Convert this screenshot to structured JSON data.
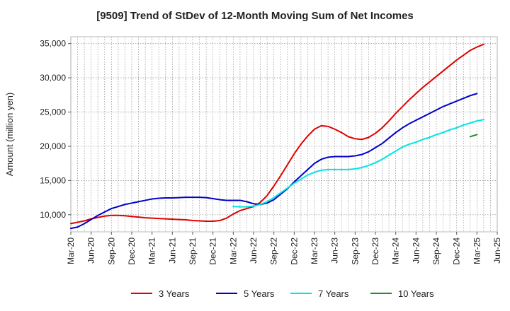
{
  "title": "[9509]  Trend of StDev of 12-Month Moving Sum of Net Incomes",
  "chart_data": {
    "type": "line",
    "title": "[9509]  Trend of StDev of 12-Month Moving Sum of Net Incomes",
    "xlabel": "",
    "ylabel": "Amount (million yen)",
    "ylim": [
      7500,
      36000
    ],
    "y_ticks": [
      10000,
      15000,
      20000,
      25000,
      30000,
      35000
    ],
    "y_tick_labels": [
      "10,000",
      "15,000",
      "20,000",
      "25,000",
      "30,000",
      "35,000"
    ],
    "x_tick_labels": [
      "Mar-20",
      "Jun-20",
      "Sep-20",
      "Dec-20",
      "Mar-21",
      "Jun-21",
      "Sep-21",
      "Dec-21",
      "Mar-22",
      "Jun-22",
      "Sep-22",
      "Dec-22",
      "Mar-23",
      "Jun-23",
      "Sep-23",
      "Dec-23",
      "Mar-24",
      "Jun-24",
      "Sep-24",
      "Dec-24",
      "Mar-25",
      "Jun-25"
    ],
    "grid": true,
    "legend_position": "bottom",
    "series": [
      {
        "name": "3 Years",
        "color": "#e00000",
        "points": [
          [
            "Mar-20",
            8700
          ],
          [
            "Apr-20",
            8900
          ],
          [
            "May-20",
            9100
          ],
          [
            "Jun-20",
            9400
          ],
          [
            "Jul-20",
            9600
          ],
          [
            "Aug-20",
            9800
          ],
          [
            "Sep-20",
            9900
          ],
          [
            "Oct-20",
            9900
          ],
          [
            "Nov-20",
            9850
          ],
          [
            "Dec-20",
            9750
          ],
          [
            "Jan-21",
            9650
          ],
          [
            "Feb-21",
            9550
          ],
          [
            "Mar-21",
            9500
          ],
          [
            "Apr-21",
            9450
          ],
          [
            "May-21",
            9400
          ],
          [
            "Jun-21",
            9350
          ],
          [
            "Jul-21",
            9300
          ],
          [
            "Aug-21",
            9250
          ],
          [
            "Sep-21",
            9150
          ],
          [
            "Oct-21",
            9100
          ],
          [
            "Nov-21",
            9050
          ],
          [
            "Dec-21",
            9050
          ],
          [
            "Jan-22",
            9150
          ],
          [
            "Feb-22",
            9500
          ],
          [
            "Mar-22",
            10100
          ],
          [
            "Apr-22",
            10600
          ],
          [
            "May-22",
            10900
          ],
          [
            "Jun-22",
            11200
          ],
          [
            "Jul-22",
            11800
          ],
          [
            "Aug-22",
            12800
          ],
          [
            "Sep-22",
            14200
          ],
          [
            "Oct-22",
            15700
          ],
          [
            "Nov-22",
            17300
          ],
          [
            "Dec-22",
            18900
          ],
          [
            "Jan-23",
            20300
          ],
          [
            "Feb-23",
            21500
          ],
          [
            "Mar-23",
            22500
          ],
          [
            "Apr-23",
            23000
          ],
          [
            "May-23",
            22900
          ],
          [
            "Jun-23",
            22500
          ],
          [
            "Jul-23",
            22000
          ],
          [
            "Aug-23",
            21400
          ],
          [
            "Sep-23",
            21100
          ],
          [
            "Oct-23",
            21000
          ],
          [
            "Nov-23",
            21300
          ],
          [
            "Dec-23",
            21900
          ],
          [
            "Jan-24",
            22700
          ],
          [
            "Feb-24",
            23700
          ],
          [
            "Mar-24",
            24800
          ],
          [
            "Apr-24",
            25800
          ],
          [
            "May-24",
            26800
          ],
          [
            "Jun-24",
            27700
          ],
          [
            "Jul-24",
            28600
          ],
          [
            "Aug-24",
            29400
          ],
          [
            "Sep-24",
            30200
          ],
          [
            "Oct-24",
            31000
          ],
          [
            "Nov-24",
            31800
          ],
          [
            "Dec-24",
            32600
          ],
          [
            "Jan-25",
            33300
          ],
          [
            "Feb-25",
            34000
          ],
          [
            "Mar-25",
            34500
          ],
          [
            "Apr-25",
            34900
          ]
        ]
      },
      {
        "name": "5 Years",
        "color": "#0000cc",
        "points": [
          [
            "Mar-20",
            8000
          ],
          [
            "Apr-20",
            8200
          ],
          [
            "May-20",
            8700
          ],
          [
            "Jun-20",
            9300
          ],
          [
            "Jul-20",
            9900
          ],
          [
            "Aug-20",
            10400
          ],
          [
            "Sep-20",
            10900
          ],
          [
            "Oct-20",
            11200
          ],
          [
            "Nov-20",
            11500
          ],
          [
            "Dec-20",
            11700
          ],
          [
            "Jan-21",
            11900
          ],
          [
            "Feb-21",
            12100
          ],
          [
            "Mar-21",
            12300
          ],
          [
            "Apr-21",
            12400
          ],
          [
            "May-21",
            12450
          ],
          [
            "Jun-21",
            12450
          ],
          [
            "Jul-21",
            12500
          ],
          [
            "Aug-21",
            12550
          ],
          [
            "Sep-21",
            12550
          ],
          [
            "Oct-21",
            12550
          ],
          [
            "Nov-21",
            12500
          ],
          [
            "Dec-21",
            12350
          ],
          [
            "Jan-22",
            12200
          ],
          [
            "Feb-22",
            12100
          ],
          [
            "Mar-22",
            12100
          ],
          [
            "Apr-22",
            12100
          ],
          [
            "May-22",
            11900
          ],
          [
            "Jun-22",
            11600
          ],
          [
            "Jul-22",
            11500
          ],
          [
            "Aug-22",
            11700
          ],
          [
            "Sep-22",
            12200
          ],
          [
            "Oct-22",
            13000
          ],
          [
            "Nov-22",
            13800
          ],
          [
            "Dec-22",
            14800
          ],
          [
            "Jan-23",
            15700
          ],
          [
            "Feb-23",
            16600
          ],
          [
            "Mar-23",
            17500
          ],
          [
            "Apr-23",
            18100
          ],
          [
            "May-23",
            18400
          ],
          [
            "Jun-23",
            18500
          ],
          [
            "Jul-23",
            18500
          ],
          [
            "Aug-23",
            18500
          ],
          [
            "Sep-23",
            18600
          ],
          [
            "Oct-23",
            18800
          ],
          [
            "Nov-23",
            19200
          ],
          [
            "Dec-23",
            19800
          ],
          [
            "Jan-24",
            20400
          ],
          [
            "Feb-24",
            21200
          ],
          [
            "Mar-24",
            22000
          ],
          [
            "Apr-24",
            22700
          ],
          [
            "May-24",
            23300
          ],
          [
            "Jun-24",
            23800
          ],
          [
            "Jul-24",
            24300
          ],
          [
            "Aug-24",
            24800
          ],
          [
            "Sep-24",
            25300
          ],
          [
            "Oct-24",
            25800
          ],
          [
            "Nov-24",
            26200
          ],
          [
            "Dec-24",
            26600
          ],
          [
            "Jan-25",
            27000
          ],
          [
            "Feb-25",
            27400
          ],
          [
            "Mar-25",
            27700
          ]
        ]
      },
      {
        "name": "7 Years",
        "color": "#00e5e5",
        "points": [
          [
            "Mar-22",
            11200
          ],
          [
            "Apr-22",
            11150
          ],
          [
            "May-22",
            11150
          ],
          [
            "Jun-22",
            11250
          ],
          [
            "Jul-22",
            11500
          ],
          [
            "Aug-22",
            11900
          ],
          [
            "Sep-22",
            12500
          ],
          [
            "Oct-22",
            13200
          ],
          [
            "Nov-22",
            13900
          ],
          [
            "Dec-22",
            14600
          ],
          [
            "Jan-23",
            15200
          ],
          [
            "Feb-23",
            15800
          ],
          [
            "Mar-23",
            16200
          ],
          [
            "Apr-23",
            16500
          ],
          [
            "May-23",
            16600
          ],
          [
            "Jun-23",
            16600
          ],
          [
            "Jul-23",
            16600
          ],
          [
            "Aug-23",
            16600
          ],
          [
            "Sep-23",
            16700
          ],
          [
            "Oct-23",
            16900
          ],
          [
            "Nov-23",
            17200
          ],
          [
            "Dec-23",
            17600
          ],
          [
            "Jan-24",
            18100
          ],
          [
            "Feb-24",
            18700
          ],
          [
            "Mar-24",
            19300
          ],
          [
            "Apr-24",
            19900
          ],
          [
            "May-24",
            20300
          ],
          [
            "Jun-24",
            20600
          ],
          [
            "Jul-24",
            21000
          ],
          [
            "Aug-24",
            21300
          ],
          [
            "Sep-24",
            21700
          ],
          [
            "Oct-24",
            22000
          ],
          [
            "Nov-24",
            22400
          ],
          [
            "Dec-24",
            22700
          ],
          [
            "Jan-25",
            23100
          ],
          [
            "Feb-25",
            23400
          ],
          [
            "Mar-25",
            23700
          ],
          [
            "Apr-25",
            23900
          ]
        ]
      },
      {
        "name": "10 Years",
        "color": "#2a8a2a",
        "points": [
          [
            "Feb-25",
            21400
          ],
          [
            "Mar-25",
            21700
          ]
        ]
      }
    ]
  }
}
